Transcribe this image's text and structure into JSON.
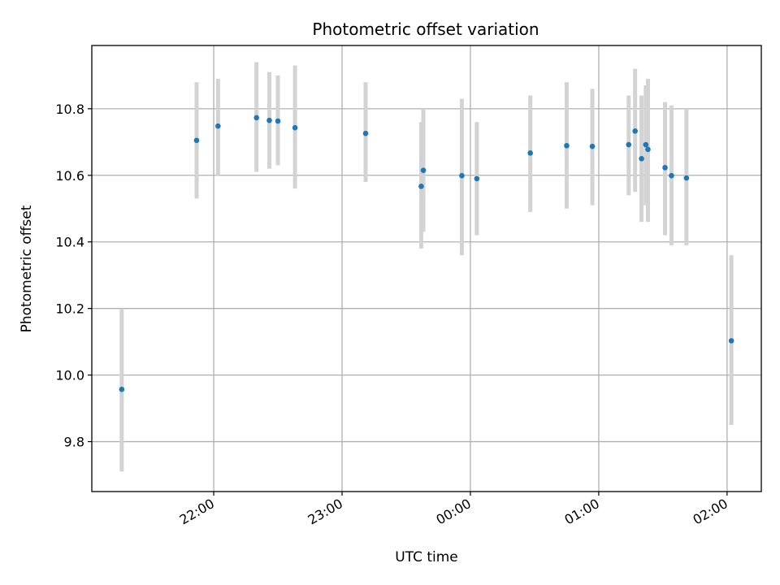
{
  "chart_data": {
    "type": "scatter",
    "title": "Photometric offset variation",
    "xlabel": "UTC time",
    "ylabel": "Photometric offset",
    "x_scale": "time",
    "xlim": [
      "2021-01-01T21:03:00",
      "2021-01-02T02:16:00"
    ],
    "ylim": [
      9.65,
      10.99
    ],
    "x_ticks": [
      {
        "t": "2021-01-01T22:00:00",
        "label": "22:00"
      },
      {
        "t": "2021-01-01T23:00:00",
        "label": "23:00"
      },
      {
        "t": "2021-01-02T00:00:00",
        "label": "00:00"
      },
      {
        "t": "2021-01-02T01:00:00",
        "label": "01:00"
      },
      {
        "t": "2021-01-02T02:00:00",
        "label": "02:00"
      }
    ],
    "y_ticks": [
      9.8,
      10.0,
      10.2,
      10.4,
      10.6,
      10.8
    ],
    "grid": true,
    "marker_color": "#1f77b4",
    "errorbar_color": "#d3d3d3",
    "points": [
      {
        "t": "2021-01-01T21:17:00",
        "y": 9.957,
        "lo": 9.71,
        "hi": 10.2
      },
      {
        "t": "2021-01-01T21:52:00",
        "y": 10.705,
        "lo": 10.53,
        "hi": 10.88
      },
      {
        "t": "2021-01-01T22:02:00",
        "y": 10.748,
        "lo": 10.6,
        "hi": 10.89
      },
      {
        "t": "2021-01-01T22:20:00",
        "y": 10.773,
        "lo": 10.61,
        "hi": 10.94
      },
      {
        "t": "2021-01-01T22:26:00",
        "y": 10.765,
        "lo": 10.62,
        "hi": 10.91
      },
      {
        "t": "2021-01-01T22:30:00",
        "y": 10.763,
        "lo": 10.63,
        "hi": 10.9
      },
      {
        "t": "2021-01-01T22:38:00",
        "y": 10.743,
        "lo": 10.56,
        "hi": 10.93
      },
      {
        "t": "2021-01-01T23:11:00",
        "y": 10.726,
        "lo": 10.58,
        "hi": 10.88
      },
      {
        "t": "2021-01-01T23:37:00",
        "y": 10.567,
        "lo": 10.38,
        "hi": 10.76
      },
      {
        "t": "2021-01-01T23:38:00",
        "y": 10.615,
        "lo": 10.43,
        "hi": 10.8
      },
      {
        "t": "2021-01-01T23:56:00",
        "y": 10.599,
        "lo": 10.36,
        "hi": 10.83
      },
      {
        "t": "2021-01-02T00:03:00",
        "y": 10.59,
        "lo": 10.42,
        "hi": 10.76
      },
      {
        "t": "2021-01-02T00:28:00",
        "y": 10.667,
        "lo": 10.49,
        "hi": 10.84
      },
      {
        "t": "2021-01-02T00:45:00",
        "y": 10.689,
        "lo": 10.5,
        "hi": 10.88
      },
      {
        "t": "2021-01-02T00:57:00",
        "y": 10.687,
        "lo": 10.51,
        "hi": 10.86
      },
      {
        "t": "2021-01-02T01:14:00",
        "y": 10.692,
        "lo": 10.54,
        "hi": 10.84
      },
      {
        "t": "2021-01-02T01:17:00",
        "y": 10.733,
        "lo": 10.55,
        "hi": 10.92
      },
      {
        "t": "2021-01-02T01:20:00",
        "y": 10.65,
        "lo": 10.46,
        "hi": 10.84
      },
      {
        "t": "2021-01-02T01:22:00",
        "y": 10.692,
        "lo": 10.51,
        "hi": 10.87
      },
      {
        "t": "2021-01-02T01:23:00",
        "y": 10.678,
        "lo": 10.46,
        "hi": 10.89
      },
      {
        "t": "2021-01-02T01:31:00",
        "y": 10.623,
        "lo": 10.42,
        "hi": 10.82
      },
      {
        "t": "2021-01-02T01:34:00",
        "y": 10.599,
        "lo": 10.39,
        "hi": 10.81
      },
      {
        "t": "2021-01-02T01:41:00",
        "y": 10.592,
        "lo": 10.39,
        "hi": 10.8
      },
      {
        "t": "2021-01-02T02:02:00",
        "y": 10.103,
        "lo": 9.85,
        "hi": 10.36
      }
    ]
  }
}
